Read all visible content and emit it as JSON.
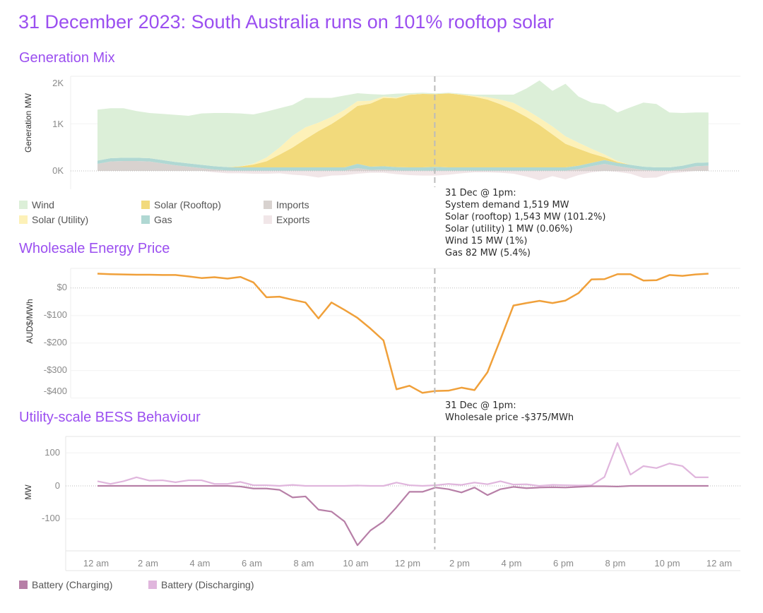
{
  "title": "31 December 2023: South Australia runs on 101% rooftop solar",
  "colors": {
    "title": "#9b4ff0",
    "wind": "#dcefd8",
    "solar_rooftop": "#f2da7c",
    "solar_utility": "#fdf1b8",
    "imports": "#d8d2cf",
    "gas": "#b0d8d3",
    "exports": "#f1e6e8",
    "price": "#f0a03a",
    "battery_charging": "#b77fa7",
    "battery_discharging": "#e0b6dd"
  },
  "x_ticks": [
    "12 am",
    "2 am",
    "4 am",
    "6 am",
    "8 am",
    "10 am",
    "12 pm",
    "2 pm",
    "4 pm",
    "6 pm",
    "8 pm",
    "10 pm",
    "12 am"
  ],
  "generation": {
    "section_title": "Generation Mix",
    "y_title": "Generation MW",
    "y_ticks": [
      "2K",
      "1K",
      "0K"
    ],
    "legend": [
      {
        "label": "Wind",
        "color": "#dcefd8"
      },
      {
        "label": "Solar (Rooftop)",
        "color": "#f2da7c"
      },
      {
        "label": "Imports",
        "color": "#d8d2cf"
      },
      {
        "label": "Solar (Utility)",
        "color": "#fdf1b8"
      },
      {
        "label": "Gas",
        "color": "#b0d8d3"
      },
      {
        "label": "Exports",
        "color": "#f1e6e8"
      }
    ],
    "tooltip": [
      "31 Dec @ 1pm:",
      "System demand 1,519 MW",
      "Solar (rooftop) 1,543 MW (101.2%)",
      "Solar (utility) 1 MW (0.06%)",
      "Wind 15 MW (1%)",
      "Gas 82 MW (5.4%)"
    ]
  },
  "price": {
    "section_title": "Wholesale Energy Price",
    "y_title": "AUD$/MWh",
    "y_ticks": [
      "$0",
      "-$100",
      "-$200",
      "-$300",
      "-$400"
    ],
    "tooltip": [
      "31 Dec @ 1pm:",
      "Wholesale price -$375/MWh"
    ]
  },
  "bess": {
    "section_title": "Utility-scale BESS Behaviour",
    "y_title": "MW",
    "y_ticks": [
      "100",
      "0",
      "-100"
    ],
    "legend": [
      {
        "label": "Battery (Charging)",
        "color": "#b77fa7"
      },
      {
        "label": "Battery (Discharging)",
        "color": "#e0b6dd"
      }
    ]
  },
  "chart_data": [
    {
      "type": "area",
      "title": "Generation Mix",
      "ylabel": "Generation MW",
      "x_interval": "30 min, 12 am to 11:30 pm",
      "ylim": [
        -300,
        2100
      ],
      "highlight_x": "1 pm",
      "stacked": true,
      "series": [
        {
          "name": "Imports",
          "values": [
            150,
            200,
            210,
            210,
            200,
            160,
            120,
            90,
            60,
            30,
            10,
            5,
            5,
            5,
            5,
            5,
            5,
            5,
            5,
            5,
            60,
            20,
            30,
            10,
            5,
            5,
            5,
            5,
            5,
            5,
            5,
            5,
            5,
            5,
            5,
            5,
            5,
            40,
            100,
            150,
            100,
            60,
            20,
            5,
            5,
            40,
            100,
            110
          ]
        },
        {
          "name": "Gas",
          "values": [
            70,
            70,
            70,
            70,
            70,
            70,
            70,
            70,
            70,
            70,
            70,
            70,
            70,
            70,
            70,
            70,
            70,
            70,
            70,
            70,
            90,
            70,
            70,
            70,
            70,
            70,
            82,
            70,
            70,
            70,
            70,
            70,
            70,
            70,
            70,
            70,
            70,
            70,
            70,
            80,
            70,
            70,
            70,
            70,
            70,
            70,
            70,
            70
          ]
        },
        {
          "name": "Solar (Rooftop)",
          "values": [
            0,
            0,
            0,
            0,
            0,
            0,
            0,
            0,
            0,
            0,
            0,
            20,
            60,
            130,
            270,
            420,
            600,
            770,
            920,
            1100,
            1230,
            1340,
            1450,
            1460,
            1540,
            1560,
            1543,
            1570,
            1540,
            1500,
            1440,
            1340,
            1220,
            1070,
            900,
            700,
            500,
            360,
            200,
            60,
            20,
            0,
            0,
            0,
            0,
            0,
            0,
            0
          ]
        },
        {
          "name": "Solar (Utility)",
          "values": [
            0,
            0,
            0,
            0,
            0,
            0,
            0,
            0,
            0,
            0,
            0,
            0,
            20,
            80,
            150,
            250,
            250,
            180,
            150,
            120,
            100,
            60,
            30,
            20,
            10,
            5,
            1,
            5,
            10,
            20,
            50,
            100,
            150,
            150,
            150,
            170,
            160,
            130,
            100,
            60,
            20,
            0,
            0,
            0,
            0,
            0,
            0,
            0
          ]
        },
        {
          "name": "Wind",
          "values": [
            1080,
            1060,
            1050,
            990,
            960,
            980,
            1000,
            1010,
            1090,
            1130,
            1150,
            1125,
            1045,
            975,
            835,
            655,
            625,
            525,
            405,
            305,
            170,
            140,
            40,
            80,
            25,
            20,
            15,
            10,
            15,
            25,
            55,
            105,
            175,
            455,
            795,
            755,
            1115,
            980,
            980,
            1060,
            1030,
            1220,
            1360,
            1345,
            1165,
            1120,
            1070,
            1060
          ]
        },
        {
          "name": "Exports",
          "values": [
            0,
            0,
            0,
            0,
            0,
            0,
            0,
            0,
            0,
            -30,
            -50,
            -50,
            -60,
            -60,
            -50,
            -80,
            -100,
            -140,
            -100,
            -90,
            -60,
            -40,
            -40,
            -70,
            -90,
            -100,
            -100,
            -80,
            -50,
            -30,
            -30,
            -40,
            -60,
            -120,
            -200,
            -110,
            -180,
            -90,
            -30,
            0,
            -20,
            -60,
            -150,
            -140,
            -50,
            -30,
            0,
            0
          ]
        }
      ]
    },
    {
      "type": "line",
      "title": "Wholesale Energy Price",
      "ylabel": "AUD$/MWh",
      "ylim": [
        -420,
        80
      ],
      "highlight_x": "1 pm",
      "series": [
        {
          "name": "Wholesale price",
          "values": [
            52,
            50,
            49,
            48,
            48,
            47,
            47,
            42,
            36,
            39,
            34,
            40,
            20,
            -34,
            -32,
            -43,
            -53,
            -111,
            -53,
            -80,
            -109,
            -148,
            -191,
            -369,
            -356,
            -382,
            -375,
            -374,
            -363,
            -372,
            -307,
            -187,
            -64,
            -55,
            -47,
            -55,
            -46,
            -19,
            31,
            32,
            50,
            50,
            27,
            28,
            47,
            44,
            49,
            52
          ]
        }
      ]
    },
    {
      "type": "line",
      "title": "Utility-scale BESS Behaviour",
      "ylabel": "MW",
      "ylim": [
        -200,
        150
      ],
      "highlight_x": "1 pm",
      "series": [
        {
          "name": "Battery (Charging)",
          "values": [
            0,
            0,
            0,
            0,
            0,
            0,
            0,
            0,
            0,
            0,
            0,
            -2,
            -8,
            -8,
            -12,
            -35,
            -32,
            -72,
            -78,
            -108,
            -180,
            -135,
            -108,
            -65,
            -18,
            -18,
            -5,
            -10,
            -20,
            -5,
            -28,
            -10,
            -3,
            -7,
            -5,
            -4,
            -5,
            -3,
            -1,
            -1,
            -2,
            0,
            0,
            0,
            0,
            0,
            0,
            0
          ]
        },
        {
          "name": "Battery (Discharging)",
          "values": [
            14,
            6,
            14,
            26,
            16,
            17,
            11,
            17,
            17,
            6,
            6,
            12,
            2,
            2,
            0,
            3,
            0,
            0,
            0,
            0,
            1,
            0,
            0,
            10,
            2,
            0,
            2,
            6,
            3,
            10,
            5,
            14,
            4,
            5,
            0,
            3,
            2,
            1,
            2,
            27,
            130,
            34,
            60,
            54,
            68,
            60,
            26,
            26
          ]
        }
      ]
    }
  ]
}
